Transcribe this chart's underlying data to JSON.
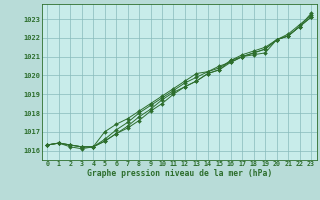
{
  "title": "Graphe pression niveau de la mer (hPa)",
  "background_color": "#b8dcd8",
  "plot_bg_color": "#c8ecea",
  "grid_color": "#88bbbb",
  "line_color": "#2d6e2d",
  "xlim": [
    -0.5,
    23.5
  ],
  "ylim": [
    1015.5,
    1023.8
  ],
  "yticks": [
    1016,
    1017,
    1018,
    1019,
    1020,
    1021,
    1022,
    1023
  ],
  "xticks": [
    0,
    1,
    2,
    3,
    4,
    5,
    6,
    7,
    8,
    9,
    10,
    11,
    12,
    13,
    14,
    15,
    16,
    17,
    18,
    19,
    20,
    21,
    22,
    23
  ],
  "series": [
    [
      1016.3,
      1016.4,
      1016.3,
      1016.2,
      1016.2,
      1017.0,
      1017.4,
      1017.7,
      1018.1,
      1018.5,
      1018.9,
      1019.3,
      1019.7,
      1020.1,
      1020.2,
      1020.4,
      1020.8,
      1021.1,
      1021.3,
      1021.5,
      1021.9,
      1022.1,
      1022.6,
      1023.3
    ],
    [
      1016.3,
      1016.4,
      1016.3,
      1016.2,
      1016.2,
      1016.6,
      1017.1,
      1017.5,
      1018.0,
      1018.4,
      1018.8,
      1019.2,
      1019.6,
      1019.9,
      1020.2,
      1020.5,
      1020.7,
      1021.0,
      1021.2,
      1021.4,
      1021.9,
      1022.2,
      1022.7,
      1023.2
    ],
    [
      1016.3,
      1016.4,
      1016.3,
      1016.2,
      1016.2,
      1016.5,
      1016.9,
      1017.3,
      1017.8,
      1018.2,
      1018.7,
      1019.1,
      1019.4,
      1019.7,
      1020.1,
      1020.3,
      1020.8,
      1021.0,
      1021.2,
      1021.4,
      1021.9,
      1022.1,
      1022.6,
      1023.1
    ],
    [
      1016.3,
      1016.4,
      1016.2,
      1016.1,
      1016.2,
      1016.5,
      1016.9,
      1017.2,
      1017.6,
      1018.1,
      1018.5,
      1019.0,
      1019.4,
      1019.7,
      1020.1,
      1020.3,
      1020.7,
      1021.0,
      1021.1,
      1021.2,
      1021.9,
      1022.1,
      1022.6,
      1023.1
    ]
  ]
}
